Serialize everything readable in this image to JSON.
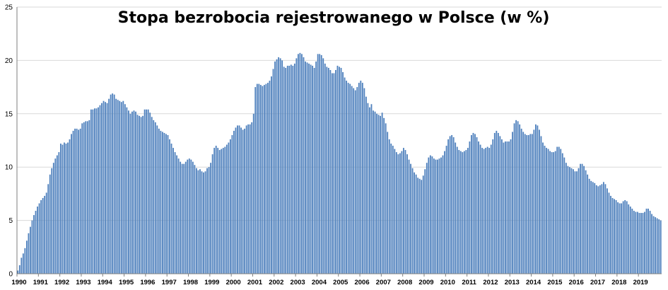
{
  "colors": {
    "bar": "#4f81bd",
    "grid": "#d9d9d9",
    "axis": "#7f7f7f"
  },
  "chart_data": {
    "type": "bar",
    "title": "Stopa bezrobocia rejestrowanego w Polsce (w %)",
    "xlabel": "",
    "ylabel": "",
    "ylim": [
      0,
      25
    ],
    "yticks": [
      0,
      5,
      10,
      15,
      20,
      25
    ],
    "grid": true,
    "legend": "none",
    "year_labels": [
      "1990",
      "1991",
      "1992",
      "1993",
      "1994",
      "1995",
      "1996",
      "1997",
      "1998",
      "1999",
      "2000",
      "2001",
      "2002",
      "2003",
      "2004",
      "2005",
      "2006",
      "2007",
      "2008",
      "2009",
      "2010",
      "2011",
      "2012",
      "2013",
      "2014",
      "2015",
      "2016",
      "2017",
      "2018",
      "2019"
    ],
    "x_start": "1990-01",
    "x_frequency": "monthly",
    "series": [
      {
        "values": [
          0.3,
          0.8,
          1.5,
          1.9,
          2.4,
          3.1,
          3.8,
          4.4,
          5.0,
          5.5,
          5.9,
          6.3,
          6.6,
          6.9,
          7.1,
          7.3,
          7.6,
          8.4,
          9.3,
          9.9,
          10.4,
          10.8,
          11.1,
          11.4,
          12.2,
          12.1,
          12.3,
          12.2,
          12.3,
          12.6,
          13.1,
          13.4,
          13.6,
          13.6,
          13.5,
          13.6,
          14.1,
          14.2,
          14.3,
          14.3,
          14.4,
          15.4,
          15.4,
          15.5,
          15.5,
          15.6,
          15.8,
          16.0,
          16.2,
          16.1,
          16.0,
          16.4,
          16.8,
          16.9,
          16.8,
          16.4,
          16.3,
          16.2,
          16.1,
          16.2,
          15.9,
          15.6,
          15.3,
          15.0,
          15.2,
          15.3,
          15.2,
          14.9,
          14.8,
          14.7,
          14.8,
          15.4,
          15.4,
          15.4,
          15.1,
          14.7,
          14.4,
          14.2,
          13.9,
          13.6,
          13.4,
          13.3,
          13.2,
          13.1,
          13.0,
          12.6,
          12.2,
          11.8,
          11.4,
          11.1,
          10.8,
          10.5,
          10.3,
          10.3,
          10.5,
          10.7,
          10.8,
          10.7,
          10.5,
          10.2,
          9.9,
          9.7,
          9.8,
          9.6,
          9.5,
          9.6,
          9.9,
          10.0,
          10.4,
          11.2,
          11.8,
          12.0,
          11.8,
          11.6,
          11.7,
          11.8,
          11.9,
          12.1,
          12.3,
          12.6,
          13.0,
          13.4,
          13.7,
          13.9,
          13.9,
          13.7,
          13.5,
          13.6,
          13.9,
          14.0,
          14.0,
          14.2,
          15.0,
          17.5,
          17.8,
          17.8,
          17.7,
          17.6,
          17.7,
          17.8,
          17.9,
          18.1,
          18.5,
          19.2,
          19.9,
          20.1,
          20.3,
          20.2,
          20.0,
          19.4,
          19.3,
          19.5,
          19.5,
          19.6,
          19.5,
          19.7,
          20.2,
          20.6,
          20.7,
          20.6,
          20.3,
          19.9,
          19.8,
          19.7,
          19.6,
          19.5,
          19.3,
          19.9,
          20.6,
          20.6,
          20.5,
          20.2,
          19.7,
          19.4,
          19.3,
          19.1,
          18.8,
          18.8,
          19.1,
          19.5,
          19.4,
          19.3,
          18.9,
          18.4,
          18.1,
          17.9,
          17.8,
          17.6,
          17.4,
          17.2,
          17.5,
          17.9,
          18.1,
          17.9,
          17.4,
          16.6,
          16.0,
          15.6,
          15.9,
          15.3,
          15.2,
          15.0,
          14.9,
          14.8,
          15.1,
          14.6,
          14.1,
          13.3,
          12.6,
          12.2,
          12.0,
          11.7,
          11.4,
          11.2,
          11.3,
          11.5,
          11.8,
          11.6,
          11.2,
          10.7,
          10.3,
          9.9,
          9.5,
          9.3,
          9.0,
          8.9,
          8.8,
          9.2,
          9.8,
          10.4,
          10.9,
          11.1,
          11.0,
          10.8,
          10.7,
          10.7,
          10.8,
          10.9,
          11.1,
          11.5,
          12.0,
          12.6,
          12.9,
          13.0,
          12.8,
          12.3,
          11.9,
          11.6,
          11.5,
          11.4,
          11.5,
          11.6,
          11.8,
          12.4,
          13.0,
          13.2,
          13.1,
          12.8,
          12.4,
          12.1,
          11.8,
          11.7,
          11.8,
          11.9,
          11.8,
          12.1,
          12.6,
          13.2,
          13.4,
          13.2,
          12.9,
          12.6,
          12.3,
          12.4,
          12.4,
          12.4,
          12.6,
          13.3,
          14.1,
          14.4,
          14.3,
          14.0,
          13.6,
          13.3,
          13.1,
          13.0,
          13.0,
          13.1,
          13.1,
          13.5,
          14.0,
          13.9,
          13.5,
          12.9,
          12.3,
          12.0,
          11.8,
          11.7,
          11.5,
          11.4,
          11.4,
          11.5,
          11.9,
          11.9,
          11.7,
          11.3,
          10.9,
          10.4,
          10.1,
          10.0,
          9.9,
          9.8,
          9.6,
          9.6,
          9.9,
          10.3,
          10.3,
          10.1,
          9.7,
          9.3,
          8.9,
          8.7,
          8.6,
          8.5,
          8.3,
          8.2,
          8.3,
          8.4,
          8.6,
          8.4,
          8.0,
          7.6,
          7.3,
          7.1,
          7.0,
          6.9,
          6.7,
          6.6,
          6.6,
          6.8,
          6.9,
          6.8,
          6.5,
          6.3,
          6.1,
          5.9,
          5.8,
          5.8,
          5.7,
          5.7,
          5.7,
          5.8,
          6.1,
          6.1,
          5.9,
          5.6,
          5.4,
          5.3,
          5.2,
          5.1,
          5.0
        ]
      }
    ]
  }
}
